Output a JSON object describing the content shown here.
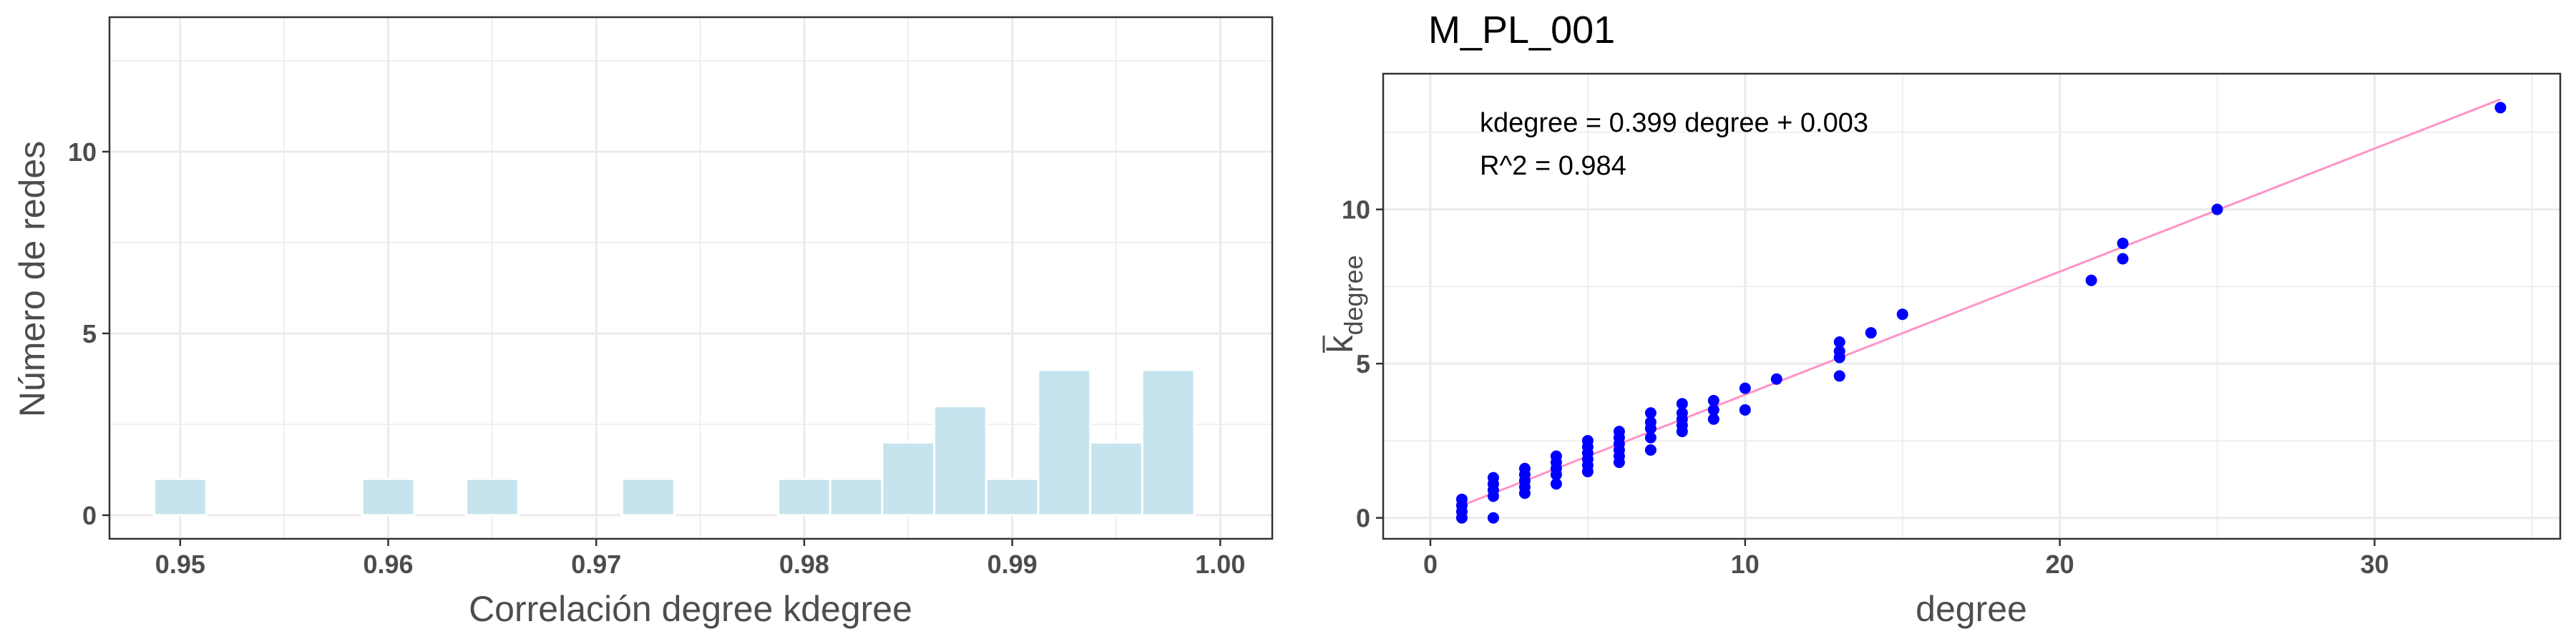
{
  "chart_data": [
    {
      "type": "bar",
      "title": "",
      "xlabel": "Correlación degree kdegree",
      "ylabel": "Número de redes",
      "bin_width": 0.0025,
      "bins": [
        {
          "x": 0.95,
          "count": 1
        },
        {
          "x": 0.9525,
          "count": 0
        },
        {
          "x": 0.955,
          "count": 0
        },
        {
          "x": 0.9575,
          "count": 0
        },
        {
          "x": 0.96,
          "count": 1
        },
        {
          "x": 0.9625,
          "count": 0
        },
        {
          "x": 0.965,
          "count": 1
        },
        {
          "x": 0.9675,
          "count": 0
        },
        {
          "x": 0.97,
          "count": 0
        },
        {
          "x": 0.9725,
          "count": 1
        },
        {
          "x": 0.975,
          "count": 0
        },
        {
          "x": 0.9775,
          "count": 0
        },
        {
          "x": 0.98,
          "count": 1
        },
        {
          "x": 0.9825,
          "count": 1
        },
        {
          "x": 0.985,
          "count": 2
        },
        {
          "x": 0.9875,
          "count": 3
        },
        {
          "x": 0.99,
          "count": 1
        },
        {
          "x": 0.9925,
          "count": 4
        },
        {
          "x": 0.995,
          "count": 2
        },
        {
          "x": 0.9975,
          "count": 4
        }
      ],
      "xticks": [
        "0.95",
        "0.96",
        "0.97",
        "0.98",
        "0.99",
        "1.00"
      ],
      "yticks": [
        "0",
        "5",
        "10"
      ],
      "xlim": [
        0.9466,
        1.0025
      ],
      "ylim": [
        -0.65,
        13.7
      ],
      "colors": {
        "bar_fill": "#c5e4ee",
        "bar_stroke": "#ffffff",
        "grid": "#ebebeb"
      }
    },
    {
      "type": "scatter",
      "title": "M_PL_001",
      "xlabel": "degree",
      "ylabel": "k",
      "ylabel_subscript": "degree",
      "annotations": [
        "kdegree = 0.399 degree + 0.003",
        "R^2 = 0.984"
      ],
      "fit_line": {
        "slope": 0.399,
        "intercept": 0.003,
        "x_range": [
          1,
          34
        ]
      },
      "xticks": [
        "0",
        "10",
        "20",
        "30"
      ],
      "yticks": [
        "0",
        "5",
        "10"
      ],
      "xlim": [
        -1.5,
        35.9
      ],
      "ylim": [
        -0.68,
        14.4
      ],
      "points": [
        [
          1,
          0.0
        ],
        [
          1,
          0.2
        ],
        [
          1,
          0.4
        ],
        [
          1,
          0.6
        ],
        [
          2,
          0.0
        ],
        [
          2,
          0.7
        ],
        [
          2,
          0.9
        ],
        [
          2,
          1.1
        ],
        [
          2,
          1.3
        ],
        [
          3,
          0.8
        ],
        [
          3,
          1.0
        ],
        [
          3,
          1.2
        ],
        [
          3,
          1.4
        ],
        [
          3,
          1.6
        ],
        [
          4,
          1.1
        ],
        [
          4,
          1.4
        ],
        [
          4,
          1.6
        ],
        [
          4,
          1.8
        ],
        [
          4,
          2.0
        ],
        [
          5,
          1.5
        ],
        [
          5,
          1.7
        ],
        [
          5,
          1.9
        ],
        [
          5,
          2.1
        ],
        [
          5,
          2.3
        ],
        [
          5,
          2.5
        ],
        [
          6,
          1.8
        ],
        [
          6,
          2.0
        ],
        [
          6,
          2.2
        ],
        [
          6,
          2.4
        ],
        [
          6,
          2.6
        ],
        [
          6,
          2.8
        ],
        [
          7,
          2.2
        ],
        [
          7,
          2.6
        ],
        [
          7,
          2.9
        ],
        [
          7,
          3.1
        ],
        [
          7,
          3.4
        ],
        [
          8,
          2.8
        ],
        [
          8,
          3.0
        ],
        [
          8,
          3.2
        ],
        [
          8,
          3.4
        ],
        [
          8,
          3.7
        ],
        [
          9,
          3.2
        ],
        [
          9,
          3.5
        ],
        [
          9,
          3.8
        ],
        [
          10,
          3.5
        ],
        [
          10,
          4.2
        ],
        [
          11,
          4.5
        ],
        [
          13,
          4.6
        ],
        [
          13,
          5.2
        ],
        [
          13,
          5.4
        ],
        [
          13,
          5.7
        ],
        [
          14,
          6.0
        ],
        [
          15,
          6.6
        ],
        [
          21,
          7.7
        ],
        [
          22,
          8.4
        ],
        [
          22,
          8.9
        ],
        [
          25,
          10.0
        ],
        [
          34,
          13.3
        ]
      ],
      "colors": {
        "point": "#0000ff",
        "line": "#ff93c8",
        "grid": "#ebebeb"
      }
    }
  ]
}
